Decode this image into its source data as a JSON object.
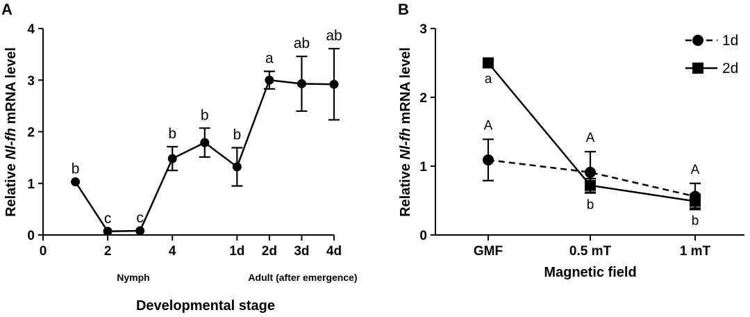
{
  "chart_data": [
    {
      "panel_label": "A",
      "type": "line",
      "title": "",
      "ylabel_parts": [
        "Relative ",
        "Nl-fh",
        " mRNA level"
      ],
      "xlabel": "Developmental stage",
      "ylim": [
        0,
        4
      ],
      "yticks": [
        "0",
        "1",
        "2",
        "3",
        "4"
      ],
      "x_ticks": [
        {
          "label": "0",
          "x": 0
        },
        {
          "label": "2",
          "x": 2
        },
        {
          "label": "4",
          "x": 4
        },
        {
          "label": "1d",
          "x": 6
        },
        {
          "label": "2d",
          "x": 7
        },
        {
          "label": "3d",
          "x": 8
        },
        {
          "label": "4d",
          "x": 9
        }
      ],
      "group_labels": [
        "Nymph",
        "Adult (after emergence)"
      ],
      "series": [
        {
          "name": "Nl-fh",
          "x": [
            1,
            2,
            3,
            4,
            5,
            6,
            7,
            8,
            9
          ],
          "values": [
            1.03,
            0.07,
            0.08,
            1.48,
            1.79,
            1.32,
            3.0,
            2.93,
            2.92
          ],
          "errors": [
            0.0,
            0.0,
            0.0,
            0.23,
            0.28,
            0.37,
            0.17,
            0.53,
            0.69
          ],
          "letters": [
            "b",
            "c",
            "c",
            "b",
            "b",
            "b",
            "a",
            "ab",
            "ab"
          ]
        }
      ]
    },
    {
      "panel_label": "B",
      "type": "line",
      "title": "",
      "ylabel_parts": [
        "Relative ",
        "Nl-fh",
        " mRNA level"
      ],
      "xlabel": "Magnetic field",
      "ylim": [
        0,
        3
      ],
      "yticks": [
        "0",
        "1",
        "2",
        "3"
      ],
      "categories": [
        "GMF",
        "0.5 mT",
        "1 mT"
      ],
      "legend_position": "top-right",
      "series": [
        {
          "name": "1d",
          "marker": "circle",
          "dash": true,
          "values": [
            1.09,
            0.91,
            0.56
          ],
          "errors": [
            0.3,
            0.3,
            0.19
          ],
          "letters": [
            "A",
            "A",
            "A"
          ]
        },
        {
          "name": "2d",
          "marker": "square",
          "dash": false,
          "values": [
            2.5,
            0.72,
            0.49
          ],
          "errors": [
            0.05,
            0.1,
            0.1
          ],
          "letters": [
            "a",
            "b",
            "b"
          ]
        }
      ]
    }
  ]
}
